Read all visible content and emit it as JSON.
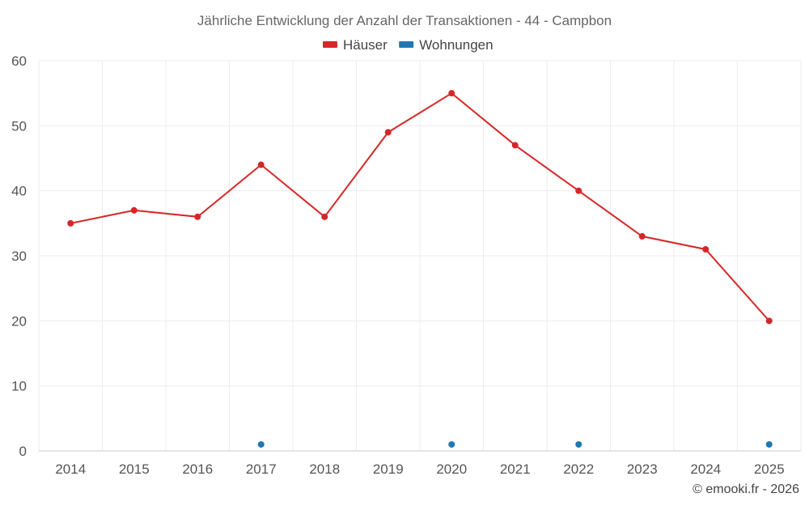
{
  "chart_data": {
    "type": "line",
    "title": "Jährliche Entwicklung der Anzahl der Transaktionen - 44 - Campbon",
    "categories": [
      "2014",
      "2015",
      "2016",
      "2017",
      "2018",
      "2019",
      "2020",
      "2021",
      "2022",
      "2023",
      "2024",
      "2025"
    ],
    "ylim": [
      0,
      60
    ],
    "yticks": [
      0,
      10,
      20,
      30,
      40,
      50,
      60
    ],
    "grid": true,
    "legend_position": "top-center",
    "series": [
      {
        "name": "Häuser",
        "color": "#d62728",
        "values": [
          35,
          37,
          36,
          44,
          36,
          49,
          55,
          47,
          40,
          33,
          31,
          20
        ],
        "line": true
      },
      {
        "name": "Wohnungen",
        "color": "#1f77b4",
        "values": [
          null,
          null,
          null,
          1,
          null,
          null,
          1,
          null,
          1,
          null,
          null,
          1
        ],
        "line": false
      }
    ]
  },
  "credit": "© emooki.fr - 2026"
}
